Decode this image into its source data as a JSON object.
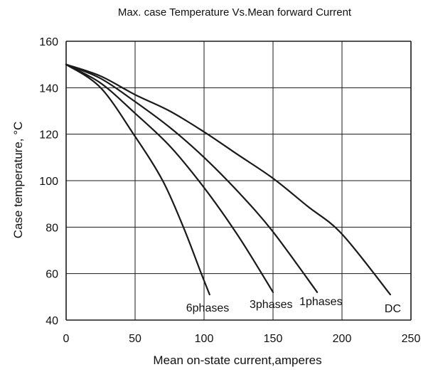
{
  "chart_data": {
    "type": "line",
    "title": "Max. case Temperature  Vs.Mean forward  Current",
    "xlabel": "Mean on-state current,amperes",
    "ylabel": "Case temperature, °C",
    "xlim": [
      0,
      250
    ],
    "ylim": [
      40,
      160
    ],
    "xticks": [
      0,
      50,
      100,
      150,
      200,
      250
    ],
    "yticks": [
      40,
      60,
      80,
      100,
      120,
      140,
      160
    ],
    "grid": true,
    "colors": {
      "line": "#1a1a1a",
      "grid": "#1a1a1a",
      "axis": "#1a1a1a"
    },
    "series": [
      {
        "name": "6phases",
        "x": [
          0,
          25,
          50,
          70,
          85,
          98,
          104
        ],
        "y": [
          150,
          140,
          119,
          100,
          80,
          60,
          51
        ]
      },
      {
        "name": "3phases",
        "x": [
          0,
          25,
          50,
          75,
          100,
          125,
          150
        ],
        "y": [
          150,
          142,
          129,
          115,
          97,
          76,
          52
        ]
      },
      {
        "name": "1phases",
        "x": [
          0,
          25,
          50,
          75,
          100,
          125,
          150,
          182
        ],
        "y": [
          150,
          144,
          134,
          123,
          110,
          95,
          78,
          52
        ]
      },
      {
        "name": "DC",
        "x": [
          0,
          25,
          50,
          75,
          100,
          125,
          150,
          175,
          200,
          235
        ],
        "y": [
          150,
          145,
          137,
          130,
          121,
          111,
          101,
          89,
          77,
          51
        ]
      }
    ]
  }
}
